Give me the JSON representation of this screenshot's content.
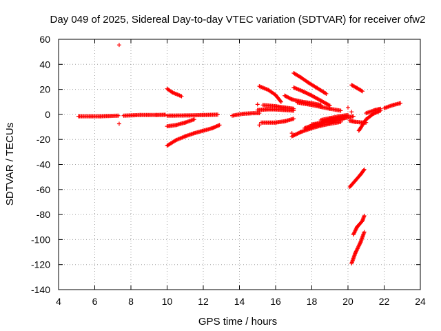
{
  "chart_data": {
    "type": "scatter",
    "title": "Day 049 of 2025, Sidereal Day-to-day VTEC variation (SDTVAR) for receiver ofw2",
    "xlabel": "GPS time / hours",
    "ylabel": "SDTVAR / TECUs",
    "xlim": [
      4,
      24
    ],
    "ylim": [
      -140,
      60
    ],
    "xticks": [
      4,
      6,
      8,
      10,
      12,
      14,
      16,
      18,
      20,
      22,
      24
    ],
    "yticks": [
      60,
      40,
      20,
      0,
      -20,
      -40,
      -60,
      -80,
      -100,
      -120,
      -140
    ],
    "grid": true,
    "marker": "+",
    "color": "#ff0000",
    "isolated_points": [
      {
        "x": 7.35,
        "y": 55.5
      },
      {
        "x": 7.35,
        "y": -7.5
      },
      {
        "x": 15.0,
        "y": 8.0
      },
      {
        "x": 15.1,
        "y": -8.5
      },
      {
        "x": 16.9,
        "y": -15.0
      },
      {
        "x": 19.7,
        "y": -4.0
      },
      {
        "x": 20.0,
        "y": 5.5
      },
      {
        "x": 20.2,
        "y": 2.0
      }
    ],
    "tracks": [
      {
        "x": [
          5.1,
          6.3,
          7.3
        ],
        "y": [
          -1.5,
          -1.5,
          -1.0
        ]
      },
      {
        "x": [
          7.6,
          8.5,
          9.4,
          9.9
        ],
        "y": [
          -1.0,
          -0.5,
          -0.5,
          -0.3
        ]
      },
      {
        "x": [
          10.0,
          11.2,
          12.0,
          12.8
        ],
        "y": [
          -1.0,
          -0.8,
          -0.5,
          -0.2
        ]
      },
      {
        "x": [
          10.0,
          10.3,
          10.8
        ],
        "y": [
          20.5,
          17.5,
          14.5
        ]
      },
      {
        "x": [
          10.0,
          10.5,
          11.0,
          11.5
        ],
        "y": [
          -9.5,
          -8.5,
          -6.5,
          -4.0
        ]
      },
      {
        "x": [
          10.0,
          10.5,
          11.0,
          11.5,
          12.0,
          12.5,
          12.9
        ],
        "y": [
          -25.0,
          -20.5,
          -17.5,
          -15.0,
          -13.0,
          -11.0,
          -8.5
        ]
      },
      {
        "x": [
          13.6,
          14.2,
          14.8,
          15.1
        ],
        "y": [
          -1.0,
          0.5,
          1.0,
          1.0
        ]
      },
      {
        "x": [
          15.1,
          15.6,
          16.0,
          16.3
        ],
        "y": [
          22.5,
          19.5,
          15.5,
          10.0
        ]
      },
      {
        "x": [
          15.0,
          15.5,
          16.0,
          16.5,
          17.0
        ],
        "y": [
          3.5,
          4.0,
          4.0,
          3.5,
          3.0
        ]
      },
      {
        "x": [
          15.2,
          16.0,
          16.5,
          17.0
        ],
        "y": [
          -6.5,
          -6.5,
          -5.5,
          -3.5
        ]
      },
      {
        "x": [
          15.3,
          16.0,
          16.5,
          17.0
        ],
        "y": [
          7.5,
          6.5,
          5.5,
          4.5
        ]
      },
      {
        "x": [
          16.5,
          16.9,
          17.5,
          18.0,
          18.5
        ],
        "y": [
          15.0,
          12.0,
          10.0,
          9.0,
          7.5
        ]
      },
      {
        "x": [
          17.0,
          17.4,
          17.8,
          18.3,
          18.8
        ],
        "y": [
          33.0,
          29.5,
          25.5,
          21.0,
          16.5
        ]
      },
      {
        "x": [
          17.0,
          17.5,
          18.0,
          18.5,
          19.0
        ],
        "y": [
          21.5,
          18.5,
          15.0,
          11.0,
          7.0
        ]
      },
      {
        "x": [
          17.2,
          18.0,
          18.5,
          19.0,
          19.6
        ],
        "y": [
          9.5,
          7.5,
          6.0,
          4.5,
          3.0
        ]
      },
      {
        "x": [
          16.9,
          17.4,
          18.0,
          18.5,
          19.0,
          19.6
        ],
        "y": [
          -17.5,
          -14.0,
          -11.0,
          -9.0,
          -7.5,
          -6.0
        ]
      },
      {
        "x": [
          17.6,
          18.2,
          18.8,
          19.3,
          19.8
        ],
        "y": [
          -11.0,
          -8.0,
          -5.5,
          -4.0,
          -3.0
        ]
      },
      {
        "x": [
          18.0,
          18.6,
          19.2,
          19.8,
          20.3
        ],
        "y": [
          -8.0,
          -6.5,
          -5.0,
          -3.0,
          -1.5
        ]
      },
      {
        "x": [
          18.5,
          19.0,
          19.5,
          20.0
        ],
        "y": [
          -4.5,
          -3.0,
          -1.5,
          -0.5
        ]
      },
      {
        "x": [
          20.1,
          20.4,
          20.8,
          21.0
        ],
        "y": [
          -5.0,
          -6.0,
          -6.5,
          -6.5
        ]
      },
      {
        "x": [
          20.2,
          20.5,
          20.8
        ],
        "y": [
          23.5,
          21.0,
          18.5
        ]
      },
      {
        "x": [
          20.1,
          20.4,
          20.7,
          20.9
        ],
        "y": [
          -58.0,
          -53.0,
          -48.0,
          -44.0
        ]
      },
      {
        "x": [
          20.3,
          20.5,
          20.8,
          20.9
        ],
        "y": [
          -96.0,
          -90.0,
          -85.0,
          -81.0
        ]
      },
      {
        "x": [
          20.2,
          20.4,
          20.7,
          20.9
        ],
        "y": [
          -119.0,
          -111.0,
          -102.0,
          -94.0
        ]
      },
      {
        "x": [
          20.6,
          21.0,
          21.4,
          21.8
        ],
        "y": [
          -13.0,
          -4.0,
          0.5,
          3.0
        ]
      },
      {
        "x": [
          21.0,
          21.5,
          21.8
        ],
        "y": [
          1.0,
          3.5,
          4.5
        ]
      },
      {
        "x": [
          22.0,
          22.5,
          22.9
        ],
        "y": [
          5.0,
          7.5,
          9.0
        ]
      }
    ]
  }
}
